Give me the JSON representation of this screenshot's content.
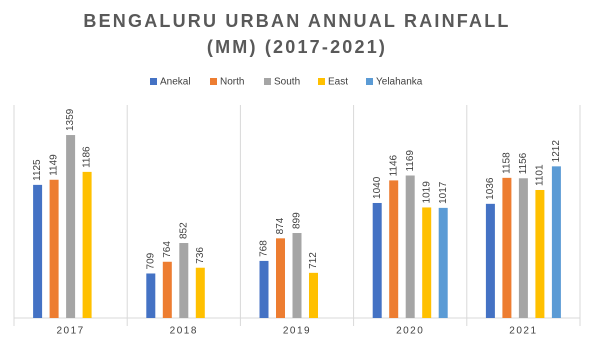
{
  "chart_data": {
    "type": "bar",
    "title": "BENGALURU URBAN ANNUAL RAINFALL (MM) (2017-2021)",
    "categories": [
      "2017",
      "2018",
      "2019",
      "2020",
      "2021"
    ],
    "series": [
      {
        "name": "Anekal",
        "color": "#4472c4",
        "values": [
          1125,
          709,
          768,
          1040,
          1036
        ]
      },
      {
        "name": "North",
        "color": "#ed7d31",
        "values": [
          1149,
          764,
          874,
          1146,
          1158
        ]
      },
      {
        "name": "South",
        "color": "#a5a5a5",
        "values": [
          1359,
          852,
          899,
          1169,
          1156
        ]
      },
      {
        "name": "East",
        "color": "#ffc000",
        "values": [
          1186,
          736,
          712,
          1019,
          1101
        ]
      },
      {
        "name": "Yelahanka",
        "color": "#5b9bd5",
        "values": [
          null,
          null,
          null,
          1017,
          1212
        ]
      }
    ],
    "ylim": [
      500,
      1500
    ]
  }
}
